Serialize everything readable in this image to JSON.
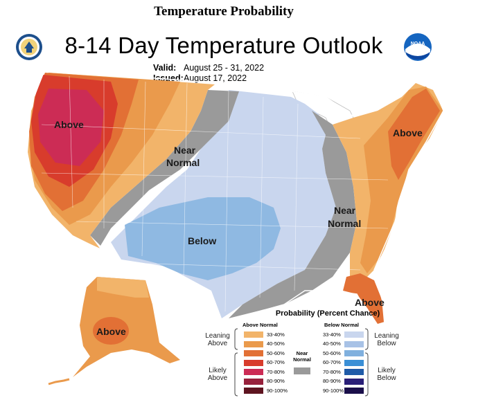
{
  "page_heading": "Temperature Probability",
  "map_title": "8-14 Day Temperature Outlook",
  "valid_label": "Valid:",
  "valid_value": "August 25 - 31, 2022",
  "issued_label": "Issued:",
  "issued_value": "August 17, 2022",
  "logos": {
    "left_icon": "commerce-seal-icon",
    "right_icon": "noaa-logo-icon",
    "noaa_text": "NOAA"
  },
  "regions": {
    "west_above": "Above",
    "plains_near_line1": "Near",
    "plains_near_line2": "Normal",
    "south_below": "Below",
    "east_near_line1": "Near",
    "east_near_line2": "Normal",
    "northeast_above": "Above",
    "florida_above": "Above",
    "alaska_above": "Above"
  },
  "legend": {
    "title": "Probability (Percent Chance)",
    "above_header": "Above Normal",
    "below_header": "Below Normal",
    "near_label_line1": "Near",
    "near_label_line2": "Normal",
    "leaning_above_1": "Leaning",
    "leaning_above_2": "Above",
    "likely_above_1": "Likely",
    "likely_above_2": "Above",
    "leaning_below_1": "Leaning",
    "leaning_below_2": "Below",
    "likely_below_1": "Likely",
    "likely_below_2": "Below",
    "above": [
      {
        "label": "33-40%",
        "color": "#f2b46a"
      },
      {
        "label": "40-50%",
        "color": "#ea9a4c"
      },
      {
        "label": "50-60%",
        "color": "#e27035"
      },
      {
        "label": "60-70%",
        "color": "#d83c2c"
      },
      {
        "label": "70-80%",
        "color": "#cc2c55"
      },
      {
        "label": "80-90%",
        "color": "#97213c"
      },
      {
        "label": "90-100%",
        "color": "#5e1420"
      }
    ],
    "below": [
      {
        "label": "33-40%",
        "color": "#c9d6ee"
      },
      {
        "label": "40-50%",
        "color": "#a8c2e6"
      },
      {
        "label": "50-60%",
        "color": "#80b0de"
      },
      {
        "label": "60-70%",
        "color": "#3a8fd6"
      },
      {
        "label": "70-80%",
        "color": "#1f5ba8"
      },
      {
        "label": "80-90%",
        "color": "#2a1f78"
      },
      {
        "label": "90-100%",
        "color": "#1a0f4a"
      }
    ],
    "near_color": "#9a9a9a"
  }
}
